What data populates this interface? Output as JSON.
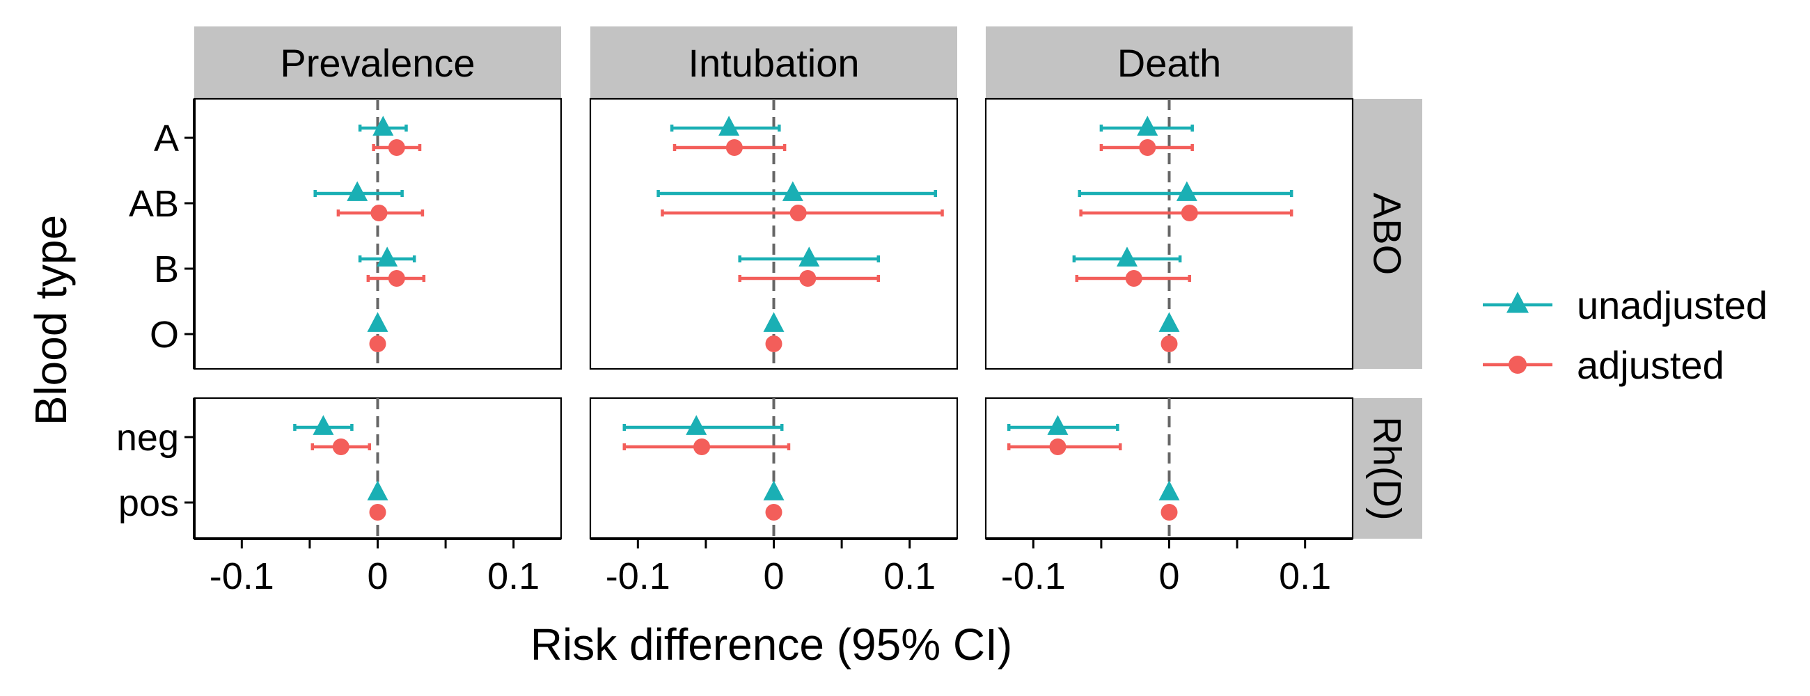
{
  "chart_data": {
    "type": "forest",
    "xlabel": "Risk difference (95% CI)",
    "ylabel": "Blood type",
    "xlim": [
      -0.135,
      0.135
    ],
    "xticks": [
      -0.1,
      0,
      0.1
    ],
    "xtick_labels": [
      "-0.1",
      "0",
      "0.1"
    ],
    "reference_line": 0,
    "columns": [
      "Prevalence",
      "Intubation",
      "Death"
    ],
    "rows": [
      {
        "name": "ABO",
        "categories": [
          "A",
          "AB",
          "B",
          "O"
        ]
      },
      {
        "name": "Rh(D)",
        "categories": [
          "neg",
          "pos"
        ]
      }
    ],
    "legend": {
      "position": "right",
      "entries": [
        "unadjusted",
        "adjusted"
      ]
    },
    "series": [
      {
        "name": "unadjusted",
        "marker": "triangle",
        "color": "#1AAFB4",
        "points": [
          {
            "column": "Prevalence",
            "row": "ABO",
            "category": "A",
            "est": 0.004,
            "lo": -0.013,
            "hi": 0.021
          },
          {
            "column": "Prevalence",
            "row": "ABO",
            "category": "AB",
            "est": -0.015,
            "lo": -0.046,
            "hi": 0.018
          },
          {
            "column": "Prevalence",
            "row": "ABO",
            "category": "B",
            "est": 0.007,
            "lo": -0.013,
            "hi": 0.027
          },
          {
            "column": "Prevalence",
            "row": "ABO",
            "category": "O",
            "est": 0.0,
            "lo": null,
            "hi": null
          },
          {
            "column": "Prevalence",
            "row": "Rh(D)",
            "category": "neg",
            "est": -0.04,
            "lo": -0.061,
            "hi": -0.019
          },
          {
            "column": "Prevalence",
            "row": "Rh(D)",
            "category": "pos",
            "est": 0.0,
            "lo": null,
            "hi": null
          },
          {
            "column": "Intubation",
            "row": "ABO",
            "category": "A",
            "est": -0.033,
            "lo": -0.075,
            "hi": 0.004
          },
          {
            "column": "Intubation",
            "row": "ABO",
            "category": "AB",
            "est": 0.014,
            "lo": -0.085,
            "hi": 0.119
          },
          {
            "column": "Intubation",
            "row": "ABO",
            "category": "B",
            "est": 0.026,
            "lo": -0.025,
            "hi": 0.077
          },
          {
            "column": "Intubation",
            "row": "ABO",
            "category": "O",
            "est": 0.0,
            "lo": null,
            "hi": null
          },
          {
            "column": "Intubation",
            "row": "Rh(D)",
            "category": "neg",
            "est": -0.057,
            "lo": -0.11,
            "hi": 0.006
          },
          {
            "column": "Intubation",
            "row": "Rh(D)",
            "category": "pos",
            "est": 0.0,
            "lo": null,
            "hi": null
          },
          {
            "column": "Death",
            "row": "ABO",
            "category": "A",
            "est": -0.016,
            "lo": -0.05,
            "hi": 0.017
          },
          {
            "column": "Death",
            "row": "ABO",
            "category": "AB",
            "est": 0.013,
            "lo": -0.066,
            "hi": 0.09
          },
          {
            "column": "Death",
            "row": "ABO",
            "category": "B",
            "est": -0.031,
            "lo": -0.07,
            "hi": 0.008
          },
          {
            "column": "Death",
            "row": "ABO",
            "category": "O",
            "est": 0.0,
            "lo": null,
            "hi": null
          },
          {
            "column": "Death",
            "row": "Rh(D)",
            "category": "neg",
            "est": -0.082,
            "lo": -0.118,
            "hi": -0.038
          },
          {
            "column": "Death",
            "row": "Rh(D)",
            "category": "pos",
            "est": 0.0,
            "lo": null,
            "hi": null
          }
        ]
      },
      {
        "name": "adjusted",
        "marker": "circle",
        "color": "#F35E5A",
        "points": [
          {
            "column": "Prevalence",
            "row": "ABO",
            "category": "A",
            "est": 0.014,
            "lo": -0.003,
            "hi": 0.031
          },
          {
            "column": "Prevalence",
            "row": "ABO",
            "category": "AB",
            "est": 0.001,
            "lo": -0.029,
            "hi": 0.033
          },
          {
            "column": "Prevalence",
            "row": "ABO",
            "category": "B",
            "est": 0.014,
            "lo": -0.007,
            "hi": 0.034
          },
          {
            "column": "Prevalence",
            "row": "ABO",
            "category": "O",
            "est": 0.0,
            "lo": null,
            "hi": null
          },
          {
            "column": "Prevalence",
            "row": "Rh(D)",
            "category": "neg",
            "est": -0.027,
            "lo": -0.048,
            "hi": -0.006
          },
          {
            "column": "Prevalence",
            "row": "Rh(D)",
            "category": "pos",
            "est": 0.0,
            "lo": null,
            "hi": null
          },
          {
            "column": "Intubation",
            "row": "ABO",
            "category": "A",
            "est": -0.029,
            "lo": -0.073,
            "hi": 0.008
          },
          {
            "column": "Intubation",
            "row": "ABO",
            "category": "AB",
            "est": 0.018,
            "lo": -0.082,
            "hi": 0.124
          },
          {
            "column": "Intubation",
            "row": "ABO",
            "category": "B",
            "est": 0.025,
            "lo": -0.025,
            "hi": 0.077
          },
          {
            "column": "Intubation",
            "row": "ABO",
            "category": "O",
            "est": 0.0,
            "lo": null,
            "hi": null
          },
          {
            "column": "Intubation",
            "row": "Rh(D)",
            "category": "neg",
            "est": -0.053,
            "lo": -0.11,
            "hi": 0.011
          },
          {
            "column": "Intubation",
            "row": "Rh(D)",
            "category": "pos",
            "est": 0.0,
            "lo": null,
            "hi": null
          },
          {
            "column": "Death",
            "row": "ABO",
            "category": "A",
            "est": -0.016,
            "lo": -0.05,
            "hi": 0.017
          },
          {
            "column": "Death",
            "row": "ABO",
            "category": "AB",
            "est": 0.015,
            "lo": -0.065,
            "hi": 0.09
          },
          {
            "column": "Death",
            "row": "ABO",
            "category": "B",
            "est": -0.026,
            "lo": -0.068,
            "hi": 0.015
          },
          {
            "column": "Death",
            "row": "ABO",
            "category": "O",
            "est": 0.0,
            "lo": null,
            "hi": null
          },
          {
            "column": "Death",
            "row": "Rh(D)",
            "category": "neg",
            "est": -0.082,
            "lo": -0.118,
            "hi": -0.036
          },
          {
            "column": "Death",
            "row": "Rh(D)",
            "category": "pos",
            "est": 0.0,
            "lo": null,
            "hi": null
          }
        ]
      }
    ]
  }
}
